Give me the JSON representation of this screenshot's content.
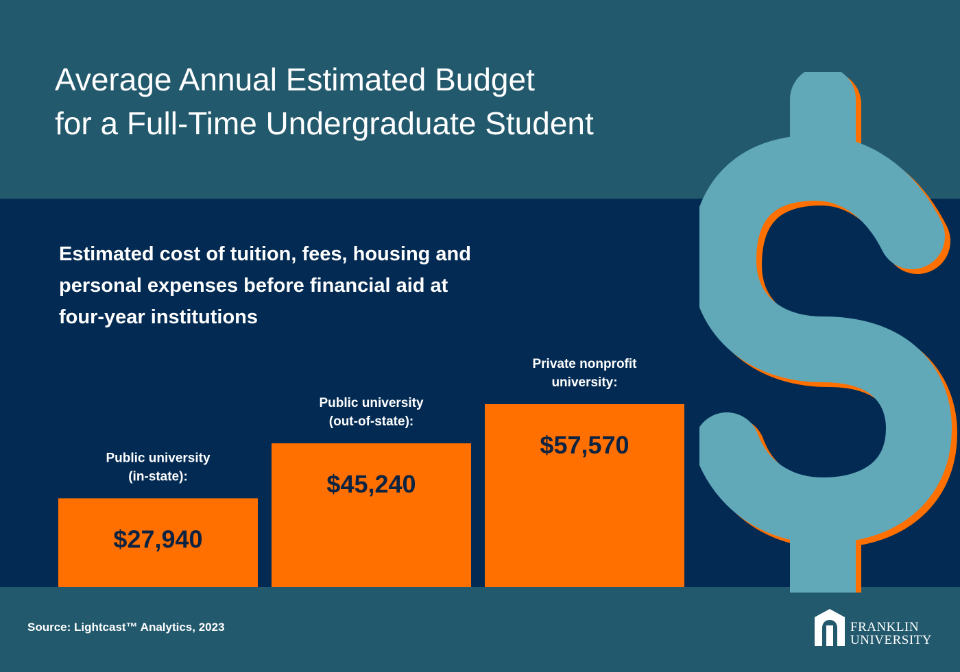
{
  "colors": {
    "top_band": "#22596d",
    "mid_band": "#022a52",
    "bar": "#ff7000",
    "value_text": "#0d2342",
    "dollar_fill": "#61a8b8",
    "dollar_outline": "#ff7000"
  },
  "title": {
    "line1": "Average Annual Estimated Budget",
    "line2": "for a Full-Time Undergraduate Student"
  },
  "subtitle": {
    "line1": "Estimated cost of tuition, fees, housing and",
    "line2": "personal expenses before financial aid at",
    "line3": "four-year institutions"
  },
  "chart_data": {
    "type": "bar",
    "categories": [
      [
        "Public university",
        "(in-state):"
      ],
      [
        "Public university",
        "(out-of-state):"
      ],
      [
        "Private nonprofit",
        "university:"
      ]
    ],
    "values": [
      27940,
      45240,
      57570
    ],
    "value_labels": [
      "$27,940",
      "$45,240",
      "$57,570"
    ],
    "ylim": [
      0,
      57570
    ]
  },
  "decor": {
    "dollar_icon": "dollar-sign-icon",
    "logo_icon": "franklin-building-icon"
  },
  "footer": {
    "source": "Source: Lightcast™ Analytics, 2023",
    "logo_line1": "FRANKLIN",
    "logo_line2": "UNIVERSITY"
  }
}
